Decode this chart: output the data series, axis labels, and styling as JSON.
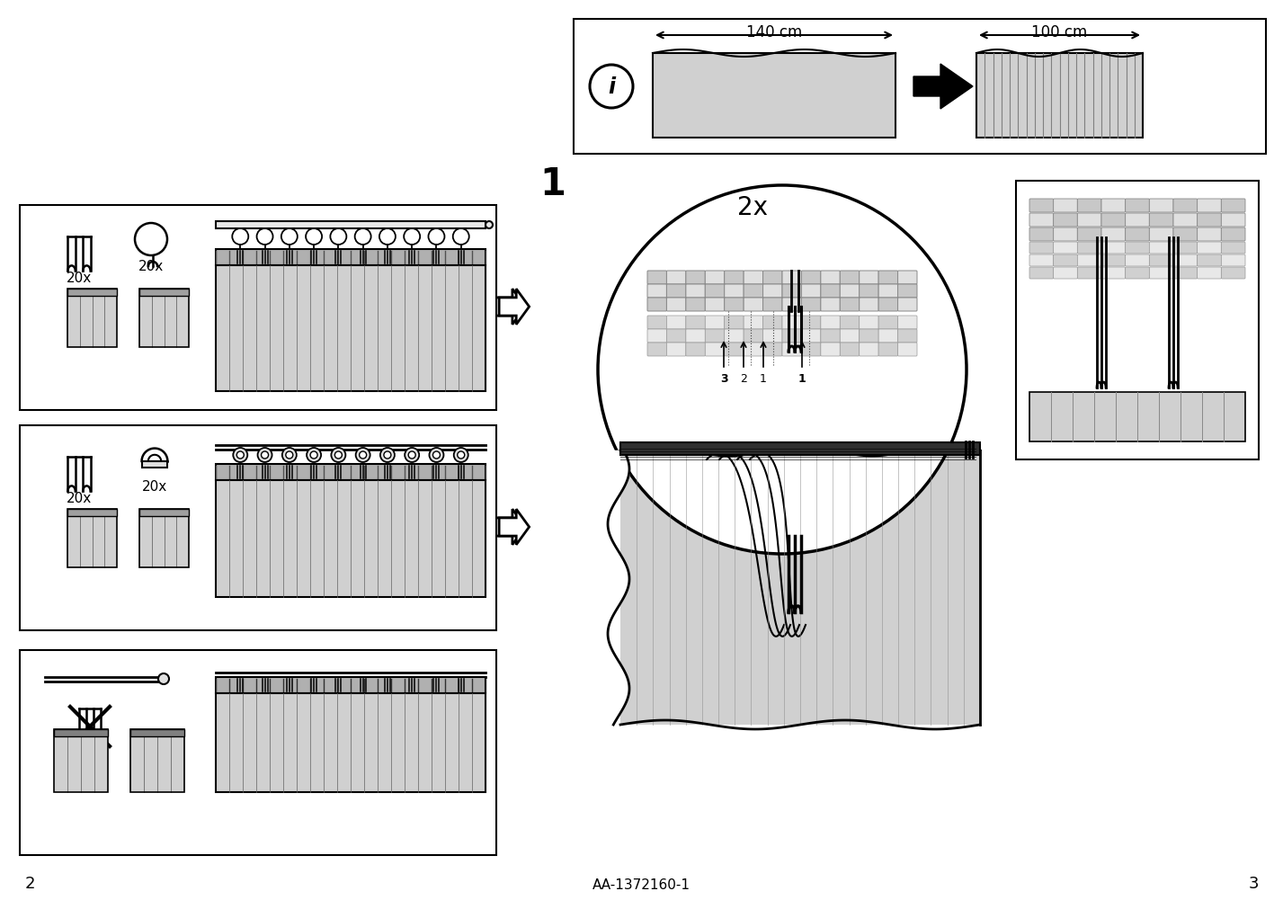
{
  "bg_color": "#ffffff",
  "line_color": "#000000",
  "light_gray": "#d0d0d0",
  "medium_gray": "#b0b0b0",
  "page_number_left": "2",
  "page_number_right": "3",
  "model_number": "AA-1372160-1",
  "dim_140": "140 cm",
  "dim_100": "100 cm",
  "label_2x": "2x",
  "label_1": "1",
  "count_20x": "20x"
}
